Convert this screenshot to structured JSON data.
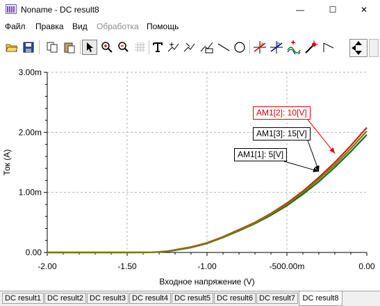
{
  "window": {
    "title": "Noname - DC result8",
    "minimize_glyph": "—",
    "maximize_glyph": "☐",
    "close_glyph": "✕"
  },
  "menu": [
    "Файл",
    "Правка",
    "Вид",
    "Обработка",
    "Помощь"
  ],
  "menu_disabled": [
    "Обработка"
  ],
  "toolbar": {
    "buttons": [
      "open-folder-icon",
      "save-icon",
      "copy-icon",
      "paste-icon",
      "pointer-icon",
      "zoom-in-icon",
      "zoom-100-icon",
      "grid-icon",
      "text-icon",
      "cursor-fit-icon",
      "cursor-follow-icon",
      "table-icon",
      "line-icon",
      "circle-icon",
      "cursor-a-icon",
      "cursor-b-icon",
      "add-curve-icon",
      "probe-icon",
      "step-icon",
      "scroll-icon"
    ],
    "active": "pointer-icon"
  },
  "chart_data": {
    "type": "line",
    "xlabel": "Входное напряжение (V)",
    "ylabel": "Ток (A)",
    "xlim": [
      -2.0,
      0.0
    ],
    "ylim": [
      0.0,
      0.003
    ],
    "xticks": [
      "-2.00",
      "-1.50",
      "-1.00",
      "-500.00m",
      "0.00"
    ],
    "yticks": [
      "0.00",
      "1.00m",
      "2.00m",
      "3.00m"
    ],
    "grid": true,
    "series": [
      {
        "name": "AM1[1]: 5[V]",
        "color": "#1a6a1a",
        "x": [
          -2.0,
          -1.5,
          -1.35,
          -1.25,
          -1.1,
          -1.0,
          -0.9,
          -0.8,
          -0.7,
          -0.6,
          -0.5,
          -0.4,
          -0.3,
          -0.2,
          -0.1,
          0.0
        ],
        "y": [
          0.0,
          0.0,
          5e-07,
          1.5e-05,
          8e-05,
          0.00015,
          0.00025,
          0.00036,
          0.00048,
          0.00062,
          0.00078,
          0.00097,
          0.00118,
          0.00142,
          0.00168,
          0.00196
        ]
      },
      {
        "name": "AM1[2]: 10[V]",
        "color": "#d02000",
        "x": [
          -2.0,
          -1.5,
          -1.35,
          -1.25,
          -1.1,
          -1.0,
          -0.9,
          -0.8,
          -0.7,
          -0.6,
          -0.5,
          -0.4,
          -0.3,
          -0.2,
          -0.1,
          0.0
        ],
        "y": [
          0.0,
          0.0,
          1e-06,
          2e-05,
          9e-05,
          0.00016,
          0.00026,
          0.00038,
          0.0005,
          0.00065,
          0.00082,
          0.00102,
          0.00125,
          0.0015,
          0.00178,
          0.00208
        ]
      },
      {
        "name": "AM1[3]: 15[V]",
        "color": "#7a7a10",
        "x": [
          -2.0,
          -1.5,
          -1.35,
          -1.25,
          -1.1,
          -1.0,
          -0.9,
          -0.8,
          -0.7,
          -0.6,
          -0.5,
          -0.4,
          -0.3,
          -0.2,
          -0.1,
          0.0
        ],
        "y": [
          0.0,
          0.0,
          1e-06,
          2e-05,
          8.5e-05,
          0.000155,
          0.000255,
          0.00037,
          0.00049,
          0.00064,
          0.0008,
          0.001,
          0.00122,
          0.00146,
          0.00173,
          0.00202
        ]
      }
    ],
    "annotations": [
      {
        "text": "AM1[2]: 10[V]",
        "color": "#e00000",
        "point_x": -0.2,
        "point_y": 0.00165
      },
      {
        "text": "AM1[3]: 15[V]",
        "color": "#000000",
        "point_x": -0.3,
        "point_y": 0.00135
      },
      {
        "text": "AM1[1]: 5[V]",
        "color": "#000000",
        "point_x": -0.3,
        "point_y": 0.00135
      }
    ]
  },
  "tabs": [
    "DC result1",
    "DC result2",
    "DC result3",
    "DC result4",
    "DC result5",
    "DC result6",
    "DC result7",
    "DC result8"
  ],
  "active_tab": "DC result8"
}
